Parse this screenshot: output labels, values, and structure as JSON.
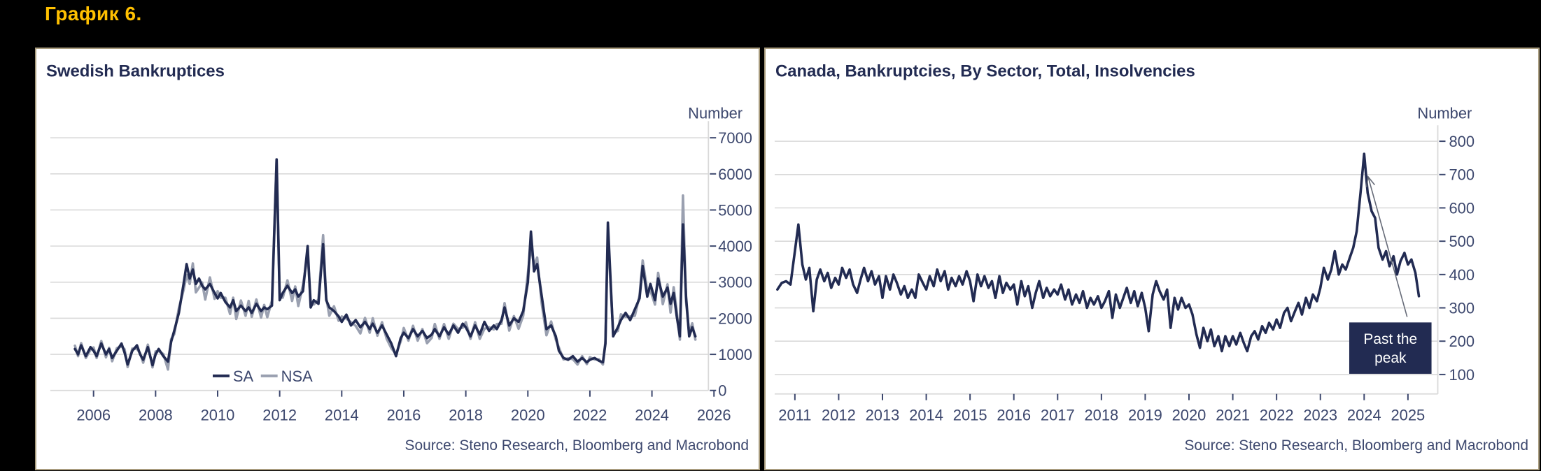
{
  "page_title": "График 6.",
  "colors": {
    "accent_gold": "#FFC000",
    "navy": "#222B52",
    "series_gray": "#9AA0B0",
    "grid": "#D9D9D9",
    "axis_text": "#3D486E",
    "panel_border": "#A89B7D",
    "annotation_bg": "#222B52",
    "annotation_text": "#FFFFFF",
    "arrow": "#666B78",
    "panel_bg": "#FFFFFF",
    "page_bg": "#000000"
  },
  "chart_data": [
    {
      "type": "line",
      "title": "Swedish Bankruptices",
      "ylabel": "Number",
      "ylim": [
        0,
        7000
      ],
      "yticks": [
        0,
        1000,
        2000,
        3000,
        4000,
        5000,
        6000,
        7000
      ],
      "xticks": [
        2006,
        2008,
        2010,
        2012,
        2014,
        2016,
        2018,
        2020,
        2022,
        2024,
        2026
      ],
      "xlim": [
        2005.3,
        2026.2
      ],
      "grid": true,
      "legend_position": "bottom",
      "source": "Source: Steno Research, Bloomberg and Macrobond",
      "x": [
        2005.4,
        2005.5,
        2005.6,
        2005.75,
        2005.9,
        2006.0,
        2006.1,
        2006.25,
        2006.4,
        2006.5,
        2006.6,
        2006.75,
        2006.9,
        2007.0,
        2007.1,
        2007.25,
        2007.4,
        2007.5,
        2007.6,
        2007.75,
        2007.9,
        2008.0,
        2008.1,
        2008.25,
        2008.4,
        2008.5,
        2008.6,
        2008.75,
        2008.9,
        2009.0,
        2009.1,
        2009.2,
        2009.3,
        2009.4,
        2009.5,
        2009.6,
        2009.75,
        2009.9,
        2010.0,
        2010.1,
        2010.25,
        2010.4,
        2010.5,
        2010.6,
        2010.75,
        2010.9,
        2011.0,
        2011.1,
        2011.25,
        2011.4,
        2011.5,
        2011.6,
        2011.75,
        2011.9,
        2012.0,
        2012.1,
        2012.25,
        2012.4,
        2012.5,
        2012.6,
        2012.75,
        2012.9,
        2013.0,
        2013.1,
        2013.25,
        2013.4,
        2013.5,
        2013.6,
        2013.75,
        2013.9,
        2014.0,
        2014.15,
        2014.3,
        2014.45,
        2014.6,
        2014.75,
        2014.9,
        2015.0,
        2015.15,
        2015.3,
        2015.45,
        2015.6,
        2015.75,
        2015.9,
        2016.0,
        2016.15,
        2016.3,
        2016.45,
        2016.6,
        2016.75,
        2016.9,
        2017.0,
        2017.15,
        2017.3,
        2017.45,
        2017.6,
        2017.75,
        2017.9,
        2018.0,
        2018.15,
        2018.3,
        2018.45,
        2018.6,
        2018.75,
        2018.9,
        2019.0,
        2019.15,
        2019.25,
        2019.4,
        2019.55,
        2019.7,
        2019.85,
        2020.0,
        2020.1,
        2020.2,
        2020.3,
        2020.45,
        2020.6,
        2020.75,
        2020.9,
        2021.0,
        2021.15,
        2021.3,
        2021.45,
        2021.6,
        2021.75,
        2021.9,
        2022.0,
        2022.15,
        2022.3,
        2022.42,
        2022.5,
        2022.58,
        2022.75,
        2022.9,
        2023.0,
        2023.15,
        2023.3,
        2023.45,
        2023.6,
        2023.7,
        2023.85,
        2023.95,
        2024.1,
        2024.2,
        2024.35,
        2024.5,
        2024.6,
        2024.7,
        2024.8,
        2024.9,
        2025.0,
        2025.1,
        2025.2,
        2025.3,
        2025.4
      ],
      "series": [
        {
          "name": "SA",
          "color": "#222B52",
          "values": [
            1150,
            1000,
            1250,
            950,
            1200,
            1100,
            950,
            1300,
            1000,
            1150,
            900,
            1100,
            1300,
            1050,
            720,
            1100,
            1250,
            1000,
            850,
            1200,
            700,
            1000,
            1150,
            950,
            800,
            1350,
            1650,
            2150,
            2950,
            3500,
            3100,
            3350,
            2950,
            3100,
            2900,
            2800,
            2950,
            2700,
            2550,
            2700,
            2450,
            2300,
            2500,
            2200,
            2350,
            2200,
            2300,
            2150,
            2400,
            2200,
            2300,
            2250,
            2350,
            6400,
            2500,
            2700,
            2900,
            2700,
            2800,
            2600,
            2750,
            4000,
            2300,
            2500,
            2400,
            4050,
            2500,
            2300,
            2200,
            2050,
            1900,
            2100,
            1800,
            1950,
            1750,
            1900,
            1700,
            1850,
            1600,
            1800,
            1550,
            1300,
            950,
            1450,
            1600,
            1450,
            1700,
            1500,
            1650,
            1450,
            1550,
            1700,
            1500,
            1750,
            1550,
            1800,
            1600,
            1850,
            1750,
            1500,
            1800,
            1550,
            1900,
            1650,
            1800,
            1700,
            1950,
            2300,
            1800,
            2000,
            1900,
            2200,
            3000,
            4400,
            3300,
            3500,
            2600,
            1700,
            1800,
            1500,
            1100,
            900,
            850,
            950,
            800,
            900,
            780,
            850,
            900,
            820,
            780,
            1300,
            4650,
            1500,
            1750,
            1950,
            2150,
            1950,
            2250,
            2550,
            3450,
            2600,
            2950,
            2500,
            3100,
            2600,
            2850,
            2400,
            2700,
            2050,
            1500,
            4600,
            2600,
            1500,
            1750,
            1500
          ]
        },
        {
          "name": "NSA",
          "color": "#9AA0B0",
          "values": [
            1240,
            950,
            1310,
            900,
            1130,
            1190,
            900,
            1370,
            920,
            1180,
            810,
            1170,
            1220,
            1140,
            650,
            1160,
            1150,
            1030,
            770,
            1270,
            640,
            1080,
            1090,
            1010,
            580,
            1420,
            1560,
            2280,
            2780,
            3200,
            2950,
            3520,
            2720,
            2850,
            2990,
            2520,
            3130,
            2540,
            2750,
            2570,
            2570,
            2120,
            2570,
            1980,
            2490,
            2070,
            2480,
            2040,
            2520,
            2020,
            2370,
            2030,
            2490,
            6400,
            2700,
            2570,
            3050,
            2480,
            2880,
            2340,
            2920,
            3760,
            2480,
            2380,
            2520,
            4300,
            2570,
            2070,
            2330,
            1930,
            2050,
            1990,
            1890,
            1790,
            1580,
            2010,
            1600,
            2000,
            1520,
            1890,
            1430,
            1170,
            1010,
            1360,
            1730,
            1380,
            1790,
            1380,
            1700,
            1310,
            1460,
            1840,
            1430,
            1840,
            1430,
            1850,
            1700,
            1740,
            1890,
            1430,
            1890,
            1430,
            1710,
            1750,
            1690,
            1840,
            1850,
            2420,
            1660,
            2060,
            1710,
            2070,
            3240,
            4000,
            3470,
            3680,
            2390,
            1530,
            1910,
            1410,
            1190,
            860,
            890,
            870,
            720,
            950,
            730,
            920,
            860,
            860,
            720,
            1370,
            4300,
            1590,
            1650,
            2110,
            2040,
            2050,
            2070,
            2630,
            3600,
            2760,
            2770,
            2380,
            3260,
            2390,
            2940,
            2160,
            2860,
            2180,
            1410,
            5400,
            2470,
            1580,
            1860,
            1410
          ]
        }
      ]
    },
    {
      "type": "line",
      "title": "Canada, Bankruptcies, By Sector, Total, Insolvencies",
      "ylabel": "Number",
      "ylim": [
        40,
        860
      ],
      "yticks": [
        100,
        200,
        300,
        400,
        500,
        600,
        700,
        800
      ],
      "xticks": [
        2011,
        2012,
        2013,
        2014,
        2015,
        2016,
        2017,
        2018,
        2019,
        2020,
        2021,
        2022,
        2023,
        2024,
        2025
      ],
      "xlim": [
        2010.5,
        2025.6
      ],
      "grid": true,
      "legend_position": "none",
      "source": "Source: Steno Research, Bloomberg and Macrobond",
      "annotation": {
        "lines": [
          "Past the",
          "peak"
        ]
      },
      "x": [
        2010.6,
        2010.7,
        2010.8,
        2010.9,
        2011.0,
        2011.08,
        2011.17,
        2011.25,
        2011.33,
        2011.42,
        2011.5,
        2011.58,
        2011.67,
        2011.75,
        2011.83,
        2011.92,
        2012.0,
        2012.08,
        2012.17,
        2012.25,
        2012.33,
        2012.42,
        2012.5,
        2012.58,
        2012.67,
        2012.75,
        2012.83,
        2012.92,
        2013.0,
        2013.08,
        2013.17,
        2013.25,
        2013.33,
        2013.42,
        2013.5,
        2013.58,
        2013.67,
        2013.75,
        2013.83,
        2013.92,
        2014.0,
        2014.08,
        2014.17,
        2014.25,
        2014.33,
        2014.42,
        2014.5,
        2014.58,
        2014.67,
        2014.75,
        2014.83,
        2014.92,
        2015.0,
        2015.08,
        2015.17,
        2015.25,
        2015.33,
        2015.42,
        2015.5,
        2015.58,
        2015.67,
        2015.75,
        2015.83,
        2015.92,
        2016.0,
        2016.08,
        2016.17,
        2016.25,
        2016.33,
        2016.42,
        2016.5,
        2016.58,
        2016.67,
        2016.75,
        2016.83,
        2016.92,
        2017.0,
        2017.08,
        2017.17,
        2017.25,
        2017.33,
        2017.42,
        2017.5,
        2017.58,
        2017.67,
        2017.75,
        2017.83,
        2017.92,
        2018.0,
        2018.08,
        2018.17,
        2018.25,
        2018.33,
        2018.42,
        2018.5,
        2018.58,
        2018.67,
        2018.75,
        2018.83,
        2018.92,
        2019.0,
        2019.08,
        2019.17,
        2019.25,
        2019.33,
        2019.42,
        2019.5,
        2019.58,
        2019.67,
        2019.75,
        2019.83,
        2019.92,
        2020.0,
        2020.08,
        2020.17,
        2020.25,
        2020.33,
        2020.42,
        2020.5,
        2020.58,
        2020.67,
        2020.75,
        2020.83,
        2020.92,
        2021.0,
        2021.08,
        2021.17,
        2021.25,
        2021.33,
        2021.42,
        2021.5,
        2021.58,
        2021.67,
        2021.75,
        2021.83,
        2021.92,
        2022.0,
        2022.08,
        2022.17,
        2022.25,
        2022.33,
        2022.42,
        2022.5,
        2022.58,
        2022.67,
        2022.75,
        2022.83,
        2022.92,
        2023.0,
        2023.08,
        2023.17,
        2023.25,
        2023.33,
        2023.42,
        2023.5,
        2023.58,
        2023.67,
        2023.75,
        2023.83,
        2023.92,
        2024.0,
        2024.08,
        2024.17,
        2024.25,
        2024.33,
        2024.42,
        2024.5,
        2024.58,
        2024.67,
        2024.75,
        2024.83,
        2024.92,
        2025.0,
        2025.08,
        2025.17,
        2025.25
      ],
      "series": [
        {
          "name": "Total, Insolvencies",
          "color": "#222B52",
          "values": [
            355,
            375,
            380,
            370,
            470,
            550,
            430,
            385,
            420,
            290,
            385,
            415,
            380,
            405,
            360,
            390,
            370,
            420,
            390,
            415,
            370,
            345,
            385,
            420,
            380,
            410,
            370,
            395,
            330,
            395,
            355,
            400,
            375,
            340,
            365,
            330,
            355,
            330,
            400,
            375,
            355,
            395,
            365,
            415,
            380,
            410,
            355,
            390,
            365,
            395,
            370,
            410,
            380,
            320,
            400,
            365,
            395,
            360,
            380,
            330,
            395,
            345,
            375,
            355,
            370,
            310,
            380,
            335,
            365,
            300,
            345,
            380,
            330,
            360,
            335,
            355,
            340,
            370,
            325,
            355,
            310,
            340,
            315,
            350,
            300,
            330,
            310,
            335,
            300,
            320,
            350,
            270,
            340,
            300,
            330,
            360,
            315,
            350,
            305,
            345,
            300,
            230,
            340,
            380,
            350,
            325,
            355,
            240,
            330,
            295,
            330,
            300,
            310,
            280,
            220,
            180,
            240,
            200,
            235,
            185,
            215,
            170,
            215,
            185,
            215,
            190,
            225,
            195,
            170,
            215,
            230,
            205,
            245,
            225,
            255,
            235,
            265,
            240,
            285,
            300,
            260,
            290,
            315,
            280,
            330,
            300,
            340,
            320,
            360,
            420,
            385,
            415,
            470,
            400,
            430,
            415,
            450,
            480,
            530,
            650,
            762,
            645,
            590,
            570,
            480,
            445,
            470,
            425,
            455,
            400,
            440,
            465,
            430,
            445,
            405,
            335
          ]
        }
      ]
    }
  ]
}
